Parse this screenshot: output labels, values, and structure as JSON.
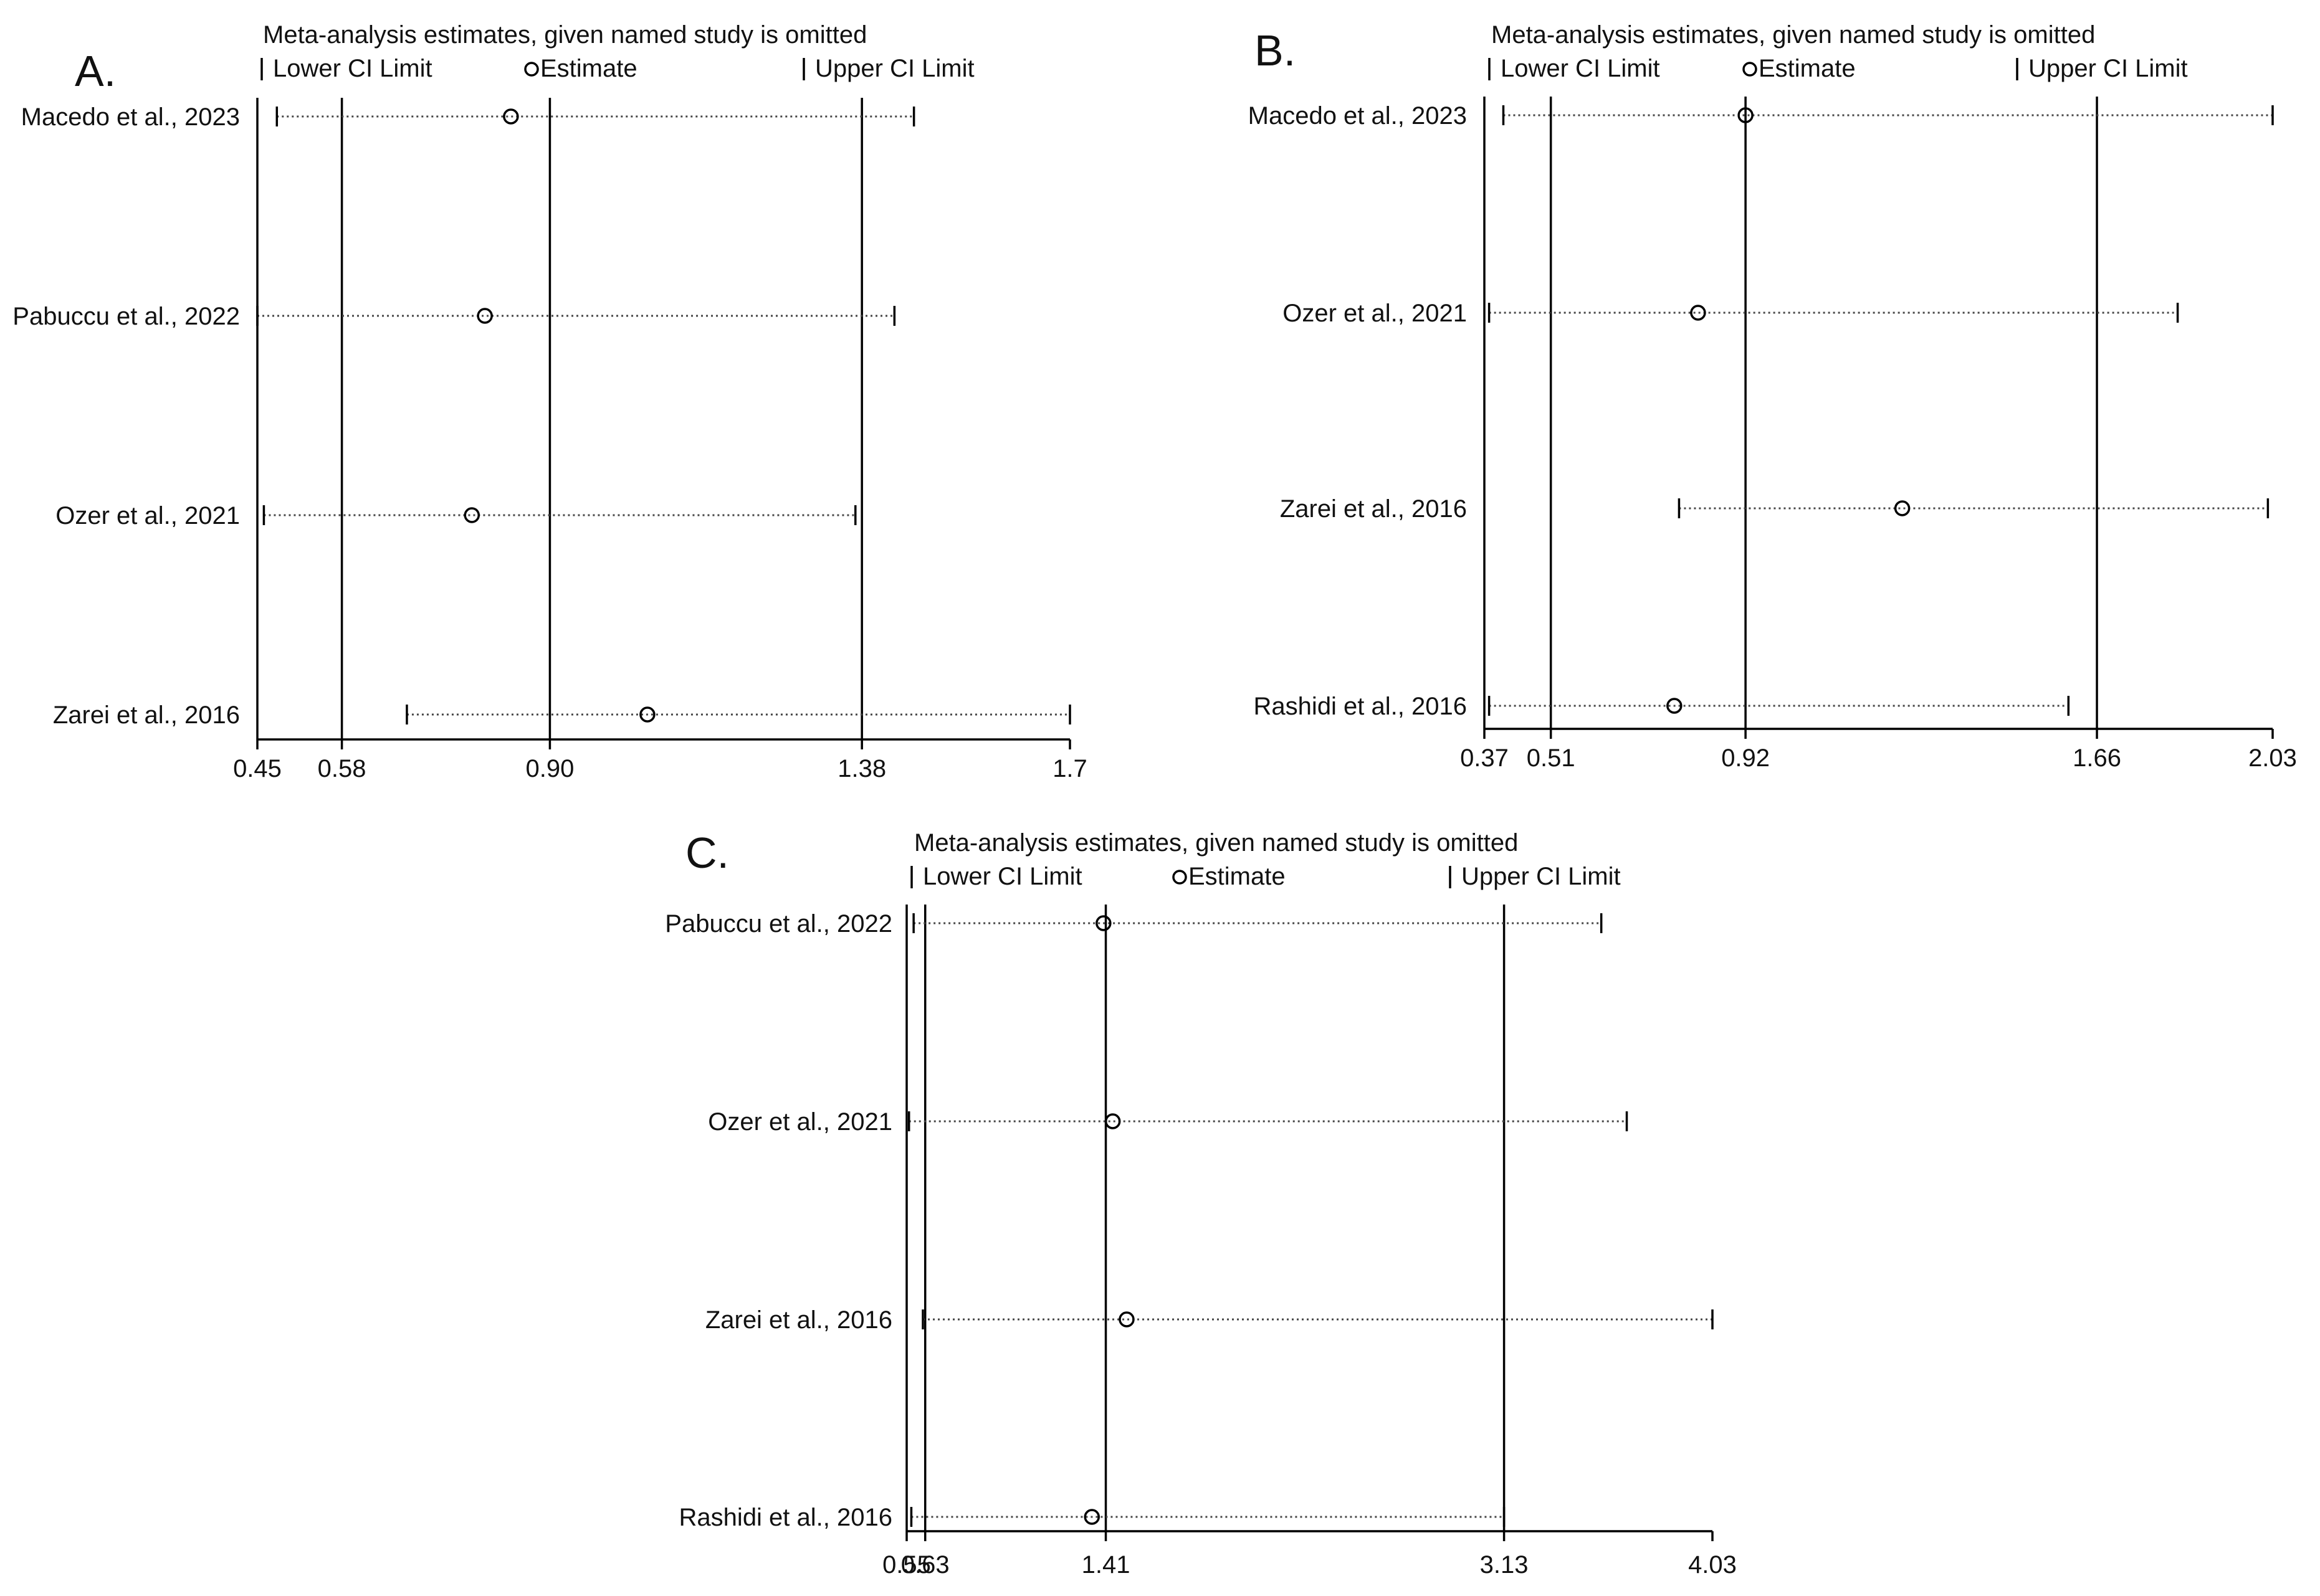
{
  "chart_data": [
    {
      "type": "scatter",
      "panel": "A.",
      "title": "Meta-analysis estimates, given named study is omitted",
      "legend": {
        "lower": "Lower CI Limit",
        "estimate": "Estimate",
        "upper": "Upper CI Limit",
        "placement": "top"
      },
      "xlim": [
        0.45,
        1.7
      ],
      "ticks": [
        "0.45",
        "0.58",
        "0.90",
        "1.38",
        "1.7"
      ],
      "ref_lines": [
        0.58,
        0.9,
        1.38
      ],
      "studies": [
        {
          "name": "Macedo et al., 2023",
          "lower": 0.48,
          "estimate": 0.84,
          "upper": 1.46
        },
        {
          "name": "Pabuccu et al., 2022",
          "lower": 0.45,
          "estimate": 0.8,
          "upper": 1.43
        },
        {
          "name": "Ozer et al., 2021",
          "lower": 0.46,
          "estimate": 0.78,
          "upper": 1.37
        },
        {
          "name": "Zarei et al., 2016",
          "lower": 0.68,
          "estimate": 1.05,
          "upper": 1.7
        }
      ]
    },
    {
      "type": "scatter",
      "panel": "B.",
      "title": "Meta-analysis estimates, given named study is omitted",
      "legend": {
        "lower": "Lower CI Limit",
        "estimate": "Estimate",
        "upper": "Upper CI Limit",
        "placement": "top"
      },
      "xlim": [
        0.37,
        2.03
      ],
      "ticks": [
        "0.37",
        "0.51",
        "0.92",
        "1.66",
        "2.03"
      ],
      "ref_lines": [
        0.51,
        0.92,
        1.66
      ],
      "studies": [
        {
          "name": "Macedo et al., 2023",
          "lower": 0.41,
          "estimate": 0.92,
          "upper": 2.03
        },
        {
          "name": "Ozer et al., 2021",
          "lower": 0.38,
          "estimate": 0.82,
          "upper": 1.83
        },
        {
          "name": "Zarei et al., 2016",
          "lower": 0.78,
          "estimate": 1.25,
          "upper": 2.02
        },
        {
          "name": "Rashidi  et  al., 2016",
          "lower": 0.38,
          "estimate": 0.77,
          "upper": 1.6
        }
      ]
    },
    {
      "type": "scatter",
      "panel": "C.",
      "title": "Meta-analysis estimates, given named study is omitted",
      "legend": {
        "lower": "Lower CI Limit",
        "estimate": "Estimate",
        "upper": "Upper CI Limit",
        "placement": "top"
      },
      "xlim": [
        0.55,
        4.03
      ],
      "ticks": [
        "0.55",
        "0.63",
        "1.41",
        "3.13",
        "4.03"
      ],
      "ref_lines": [
        0.63,
        1.41,
        3.13
      ],
      "studies": [
        {
          "name": "Pabuccu et al., 2022",
          "lower": 0.58,
          "estimate": 1.4,
          "upper": 3.55
        },
        {
          "name": "Ozer et al., 2021",
          "lower": 0.56,
          "estimate": 1.44,
          "upper": 3.66
        },
        {
          "name": "Zarei et al., 2016",
          "lower": 0.62,
          "estimate": 1.5,
          "upper": 4.03
        },
        {
          "name": "Rashidi et al., 2016",
          "lower": 0.57,
          "estimate": 1.35,
          "upper": 3.13
        }
      ]
    }
  ]
}
